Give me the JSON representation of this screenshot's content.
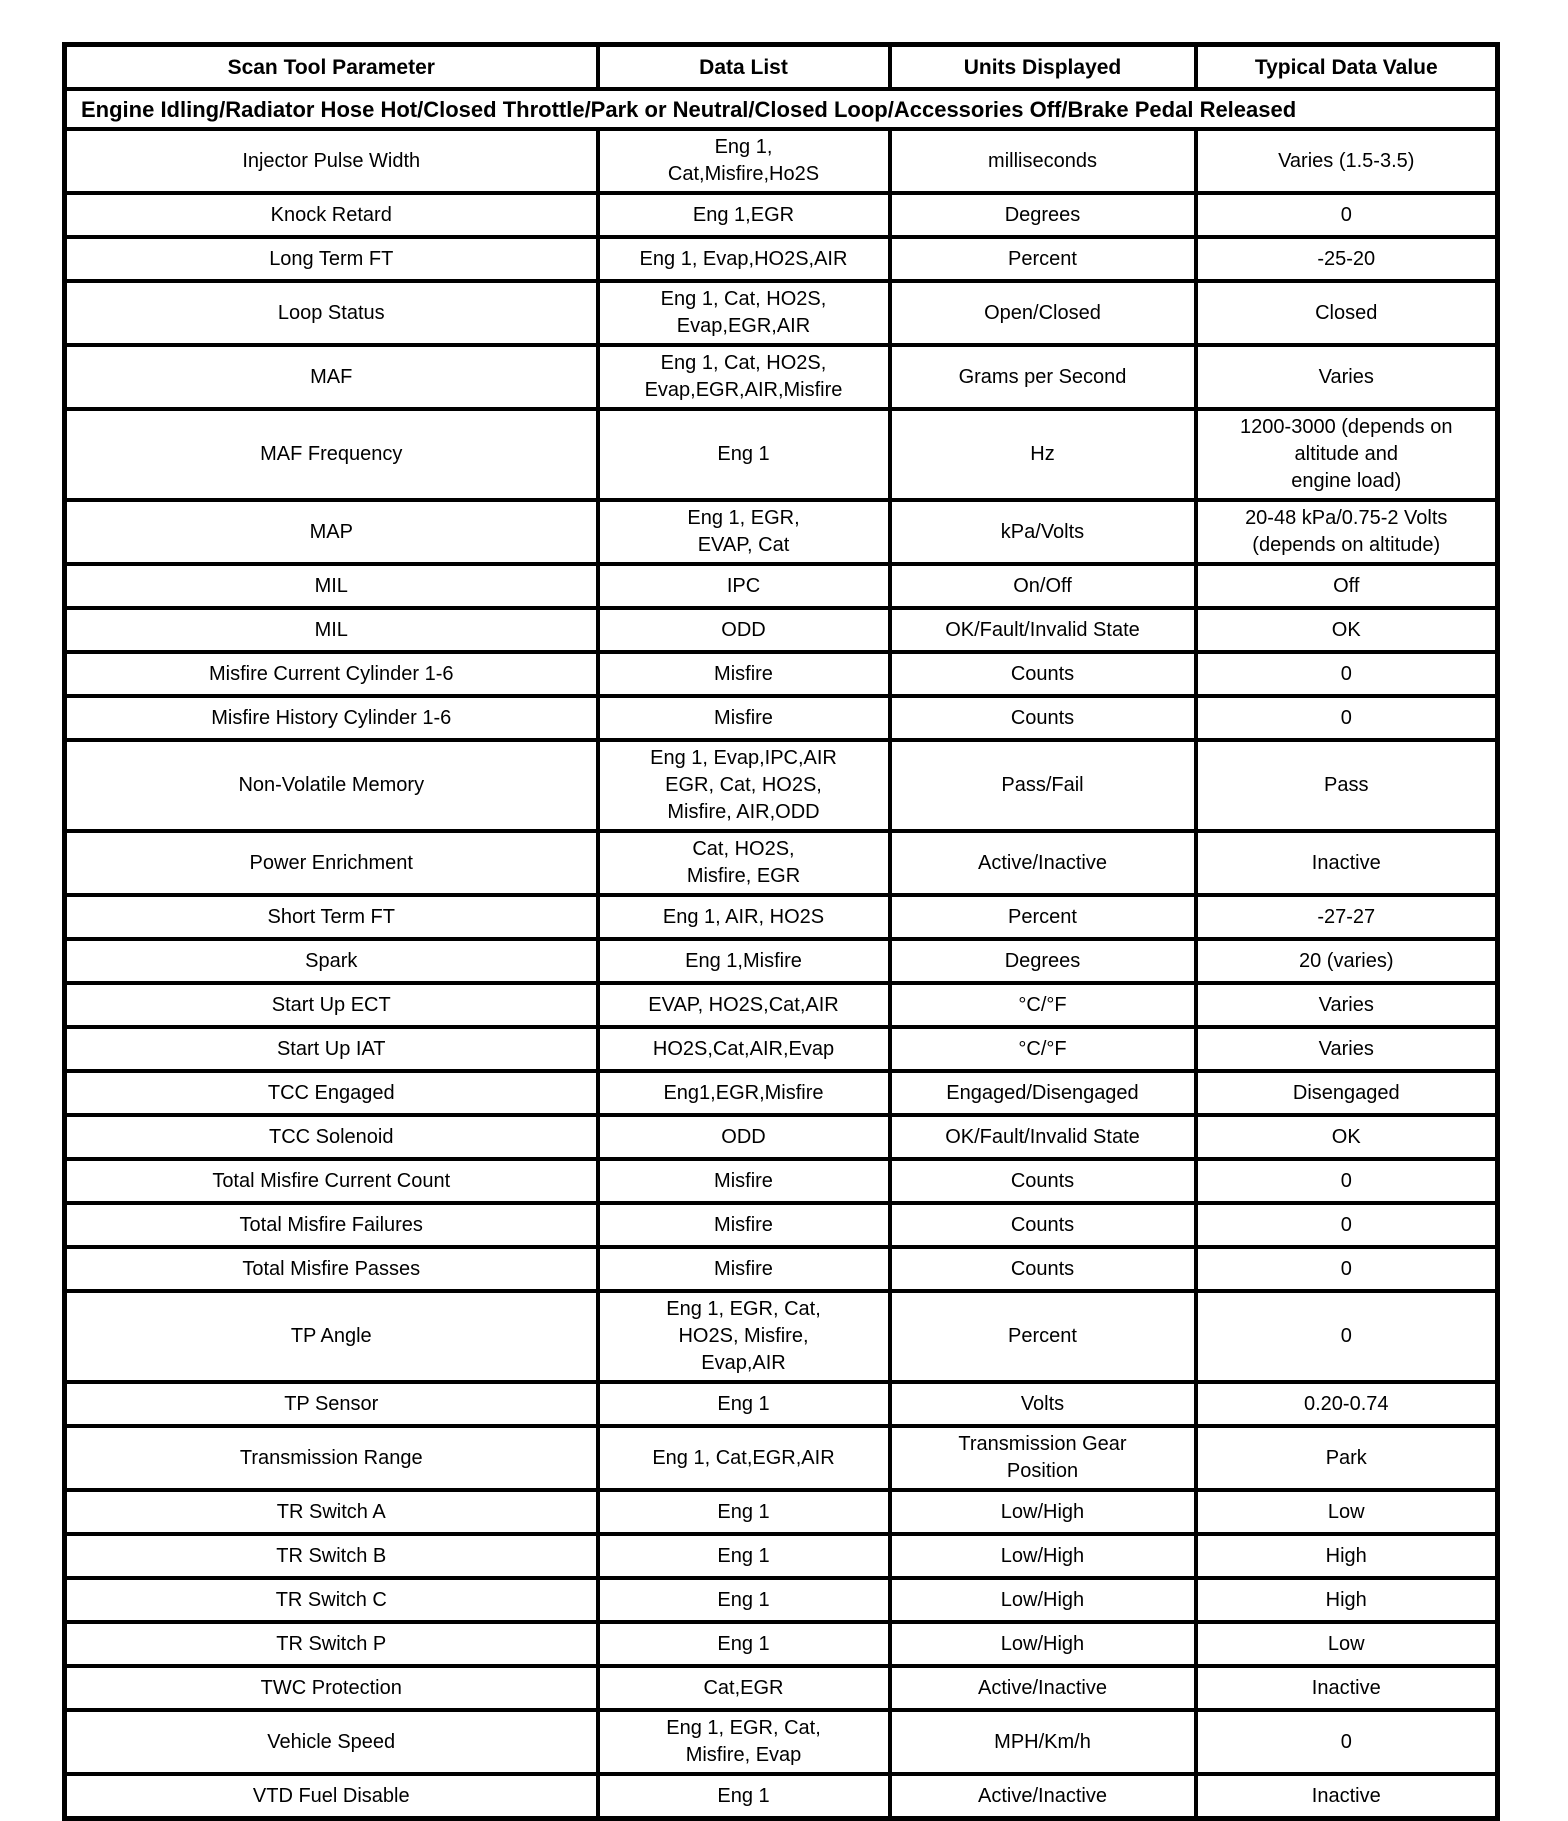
{
  "table": {
    "headers": [
      "Scan Tool Parameter",
      "Data List",
      "Units Displayed",
      "Typical Data Value"
    ],
    "condition": "Engine Idling/Radiator Hose Hot/Closed Throttle/Park or Neutral/Closed Loop/Accessories Off/Brake Pedal Released",
    "rows": [
      {
        "parameter": "Injector Pulse Width",
        "data_list": "Eng 1,\nCat,Misfire,Ho2S",
        "units": "milliseconds",
        "typical_value": "Varies (1.5-3.5)"
      },
      {
        "parameter": "Knock Retard",
        "data_list": "Eng 1,EGR",
        "units": "Degrees",
        "typical_value": "0"
      },
      {
        "parameter": "Long Term FT",
        "data_list": "Eng 1, Evap,HO2S,AIR",
        "units": "Percent",
        "typical_value": "-25-20"
      },
      {
        "parameter": "Loop Status",
        "data_list": "Eng 1, Cat, HO2S,\nEvap,EGR,AIR",
        "units": "Open/Closed",
        "typical_value": "Closed"
      },
      {
        "parameter": "MAF",
        "data_list": "Eng 1, Cat, HO2S,\nEvap,EGR,AIR,Misfire",
        "units": "Grams per Second",
        "typical_value": "Varies"
      },
      {
        "parameter": "MAF Frequency",
        "data_list": "Eng 1",
        "units": "Hz",
        "typical_value": "1200-3000 (depends on\naltitude and\nengine load)"
      },
      {
        "parameter": "MAP",
        "data_list": "Eng 1, EGR,\nEVAP, Cat",
        "units": "kPa/Volts",
        "typical_value": "20-48 kPa/0.75-2 Volts\n(depends on altitude)"
      },
      {
        "parameter": "MIL",
        "data_list": "IPC",
        "units": "On/Off",
        "typical_value": "Off"
      },
      {
        "parameter": "MIL",
        "data_list": "ODD",
        "units": "OK/Fault/Invalid State",
        "typical_value": "OK"
      },
      {
        "parameter": "Misfire Current Cylinder 1-6",
        "data_list": "Misfire",
        "units": "Counts",
        "typical_value": "0"
      },
      {
        "parameter": "Misfire History Cylinder 1-6",
        "data_list": "Misfire",
        "units": "Counts",
        "typical_value": "0"
      },
      {
        "parameter": "Non-Volatile Memory",
        "data_list": "Eng 1, Evap,IPC,AIR\nEGR, Cat, HO2S,\nMisfire, AIR,ODD",
        "units": "Pass/Fail",
        "typical_value": "Pass"
      },
      {
        "parameter": "Power Enrichment",
        "data_list": "Cat, HO2S,\nMisfire, EGR",
        "units": "Active/Inactive",
        "typical_value": "Inactive"
      },
      {
        "parameter": "Short Term FT",
        "data_list": "Eng 1, AIR, HO2S",
        "units": "Percent",
        "typical_value": "-27-27"
      },
      {
        "parameter": "Spark",
        "data_list": "Eng 1,Misfire",
        "units": "Degrees",
        "typical_value": "20 (varies)"
      },
      {
        "parameter": "Start Up ECT",
        "data_list": "EVAP, HO2S,Cat,AIR",
        "units": "°C/°F",
        "typical_value": "Varies"
      },
      {
        "parameter": "Start Up IAT",
        "data_list": "HO2S,Cat,AIR,Evap",
        "units": "°C/°F",
        "typical_value": "Varies"
      },
      {
        "parameter": "TCC Engaged",
        "data_list": "Eng1,EGR,Misfire",
        "units": "Engaged/Disengaged",
        "typical_value": "Disengaged"
      },
      {
        "parameter": "TCC Solenoid",
        "data_list": "ODD",
        "units": "OK/Fault/Invalid State",
        "typical_value": "OK"
      },
      {
        "parameter": "Total Misfire Current Count",
        "data_list": "Misfire",
        "units": "Counts",
        "typical_value": "0"
      },
      {
        "parameter": "Total Misfire Failures",
        "data_list": "Misfire",
        "units": "Counts",
        "typical_value": "0"
      },
      {
        "parameter": "Total Misfire Passes",
        "data_list": "Misfire",
        "units": "Counts",
        "typical_value": "0"
      },
      {
        "parameter": "TP Angle",
        "data_list": "Eng 1, EGR, Cat,\nHO2S, Misfire,\nEvap,AIR",
        "units": "Percent",
        "typical_value": "0"
      },
      {
        "parameter": "TP Sensor",
        "data_list": "Eng 1",
        "units": "Volts",
        "typical_value": "0.20-0.74"
      },
      {
        "parameter": "Transmission Range",
        "data_list": "Eng 1, Cat,EGR,AIR",
        "units": "Transmission Gear\nPosition",
        "typical_value": "Park"
      },
      {
        "parameter": "TR Switch A",
        "data_list": "Eng 1",
        "units": "Low/High",
        "typical_value": "Low"
      },
      {
        "parameter": "TR Switch B",
        "data_list": "Eng 1",
        "units": "Low/High",
        "typical_value": "High"
      },
      {
        "parameter": "TR Switch C",
        "data_list": "Eng 1",
        "units": "Low/High",
        "typical_value": "High"
      },
      {
        "parameter": "TR Switch P",
        "data_list": "Eng 1",
        "units": "Low/High",
        "typical_value": "Low"
      },
      {
        "parameter": "TWC Protection",
        "data_list": "Cat,EGR",
        "units": "Active/Inactive",
        "typical_value": "Inactive"
      },
      {
        "parameter": "Vehicle Speed",
        "data_list": "Eng 1, EGR, Cat,\nMisfire, Evap",
        "units": "MPH/Km/h",
        "typical_value": "0"
      },
      {
        "parameter": "VTD Fuel Disable",
        "data_list": "Eng 1",
        "units": "Active/Inactive",
        "typical_value": "Inactive"
      }
    ]
  }
}
